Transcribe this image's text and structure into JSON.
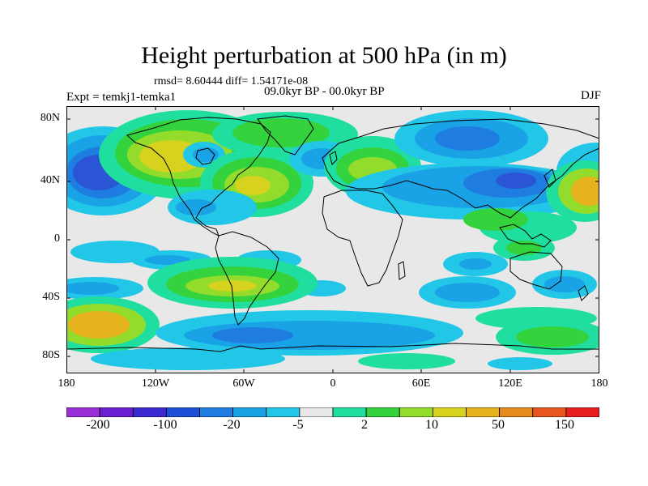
{
  "title": "Height perturbation at 500 hPa (in m)",
  "stats": "rmsd= 8.60444 diff= 1.54171e-08",
  "period": "09.0kyr BP - 00.0kyr BP",
  "experiment": "Expt = temkj1-temka1",
  "season": "DJF",
  "lat_labels": [
    "80N",
    "40N",
    "0",
    "40S",
    "80S"
  ],
  "lon_labels": [
    "180",
    "120W",
    "60W",
    "0",
    "60E",
    "120E",
    "180"
  ],
  "colorbar": {
    "colors": [
      "#9b30d9",
      "#6a1fd2",
      "#3a2ad0",
      "#1f4fd6",
      "#1f7ce0",
      "#1aa2e6",
      "#22c6e6",
      "#e8e8e8",
      "#20dea0",
      "#34d23c",
      "#93dc2c",
      "#d6d21e",
      "#e6b21e",
      "#e68a1e",
      "#e6561e",
      "#e61e1e"
    ],
    "labels": [
      "-200",
      "-100",
      "-20",
      "-5",
      "2",
      "10",
      "50",
      "150"
    ]
  },
  "field_colors": {
    "neutral": "#e8e8e8",
    "c_strong": "#2a56d6",
    "c_mid": "#1f7ce0",
    "c_light": "#1aa2e6",
    "c_cyan": "#22c6e6",
    "w_teal": "#20dea0",
    "w_green": "#34d23c",
    "w_lime": "#93dc2c",
    "w_yellow": "#d6d21e",
    "w_orange": "#e6b21e",
    "coast": "#000000"
  }
}
